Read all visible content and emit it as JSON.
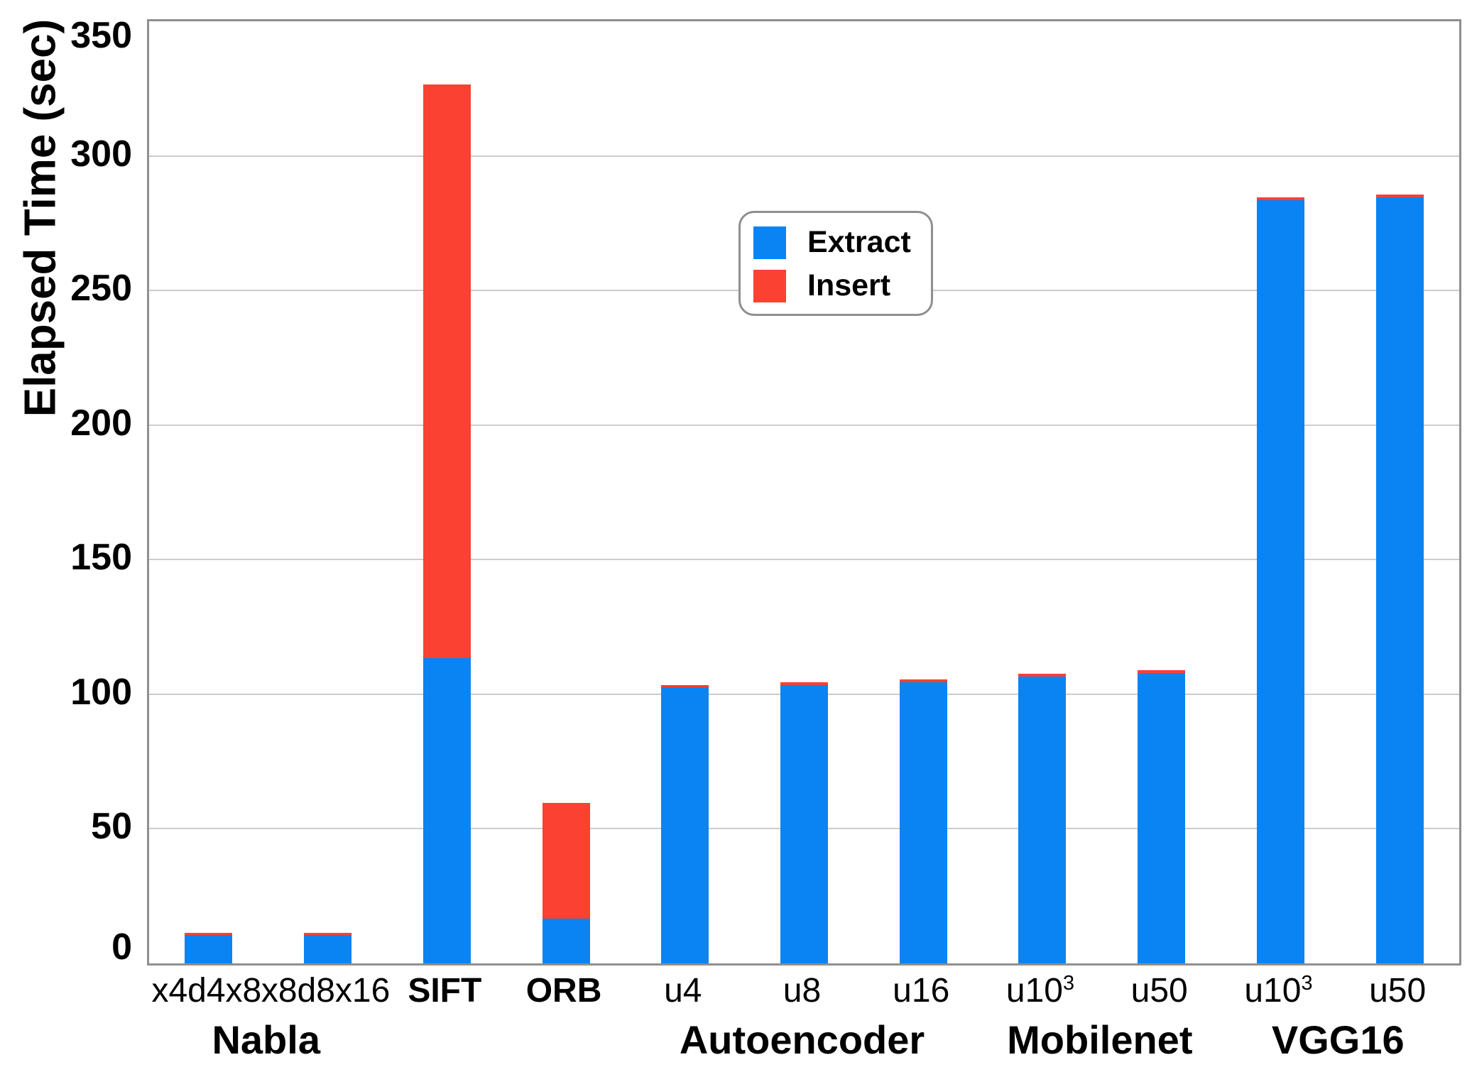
{
  "chart_data": {
    "type": "bar",
    "stacked": true,
    "title": "",
    "xlabel": "",
    "ylabel": "Elapsed Time (sec)",
    "ylim": [
      0,
      350
    ],
    "yticks": [
      0,
      50,
      100,
      150,
      200,
      250,
      300,
      350
    ],
    "grid": "horizontal gridlines every 50, light gray",
    "legend_position": "upper middle inside plot",
    "categories": [
      {
        "text": "x4d4x8",
        "sup": "",
        "bold": false
      },
      {
        "text": "x8d8x16",
        "sup": "",
        "bold": false
      },
      {
        "text": "SIFT",
        "sup": "",
        "bold": true
      },
      {
        "text": "ORB",
        "sup": "",
        "bold": true
      },
      {
        "text": "u4",
        "sup": "",
        "bold": false
      },
      {
        "text": "u8",
        "sup": "",
        "bold": false
      },
      {
        "text": "u16",
        "sup": "",
        "bold": false
      },
      {
        "text": "u10",
        "sup": "3",
        "bold": false
      },
      {
        "text": "u50",
        "sup": "",
        "bold": false
      },
      {
        "text": "u10",
        "sup": "3",
        "bold": false
      },
      {
        "text": "u50",
        "sup": "",
        "bold": false
      }
    ],
    "groups": [
      {
        "label": "Nabla",
        "from": 0,
        "to": 1
      },
      {
        "label": "Autoencoder",
        "from": 4,
        "to": 6
      },
      {
        "label": "Mobilenet",
        "from": 7,
        "to": 8
      },
      {
        "label": "VGG16",
        "from": 9,
        "to": 10
      }
    ],
    "series": [
      {
        "name": "Extract",
        "color": "#0a84f3",
        "values": [
          10.5,
          10.5,
          113.5,
          16.5,
          102.5,
          103.5,
          104.5,
          106.5,
          108,
          283.5,
          284.5
        ]
      },
      {
        "name": "Insert",
        "color": "#fa4132",
        "values": [
          0.8,
          0.8,
          213,
          43,
          1,
          1,
          1,
          1,
          1,
          1.2,
          1.2
        ]
      }
    ]
  },
  "legend": {
    "entries": [
      {
        "label": "Extract",
        "color": "#0a84f3"
      },
      {
        "label": "Insert",
        "color": "#fa4132"
      }
    ]
  },
  "colors": {
    "background": "#ffffff",
    "frame": "#8f8f8f",
    "gridline": "#cccccc",
    "text": "#000000",
    "extract_blue": "#0a84f3",
    "insert_red": "#fa4132"
  }
}
